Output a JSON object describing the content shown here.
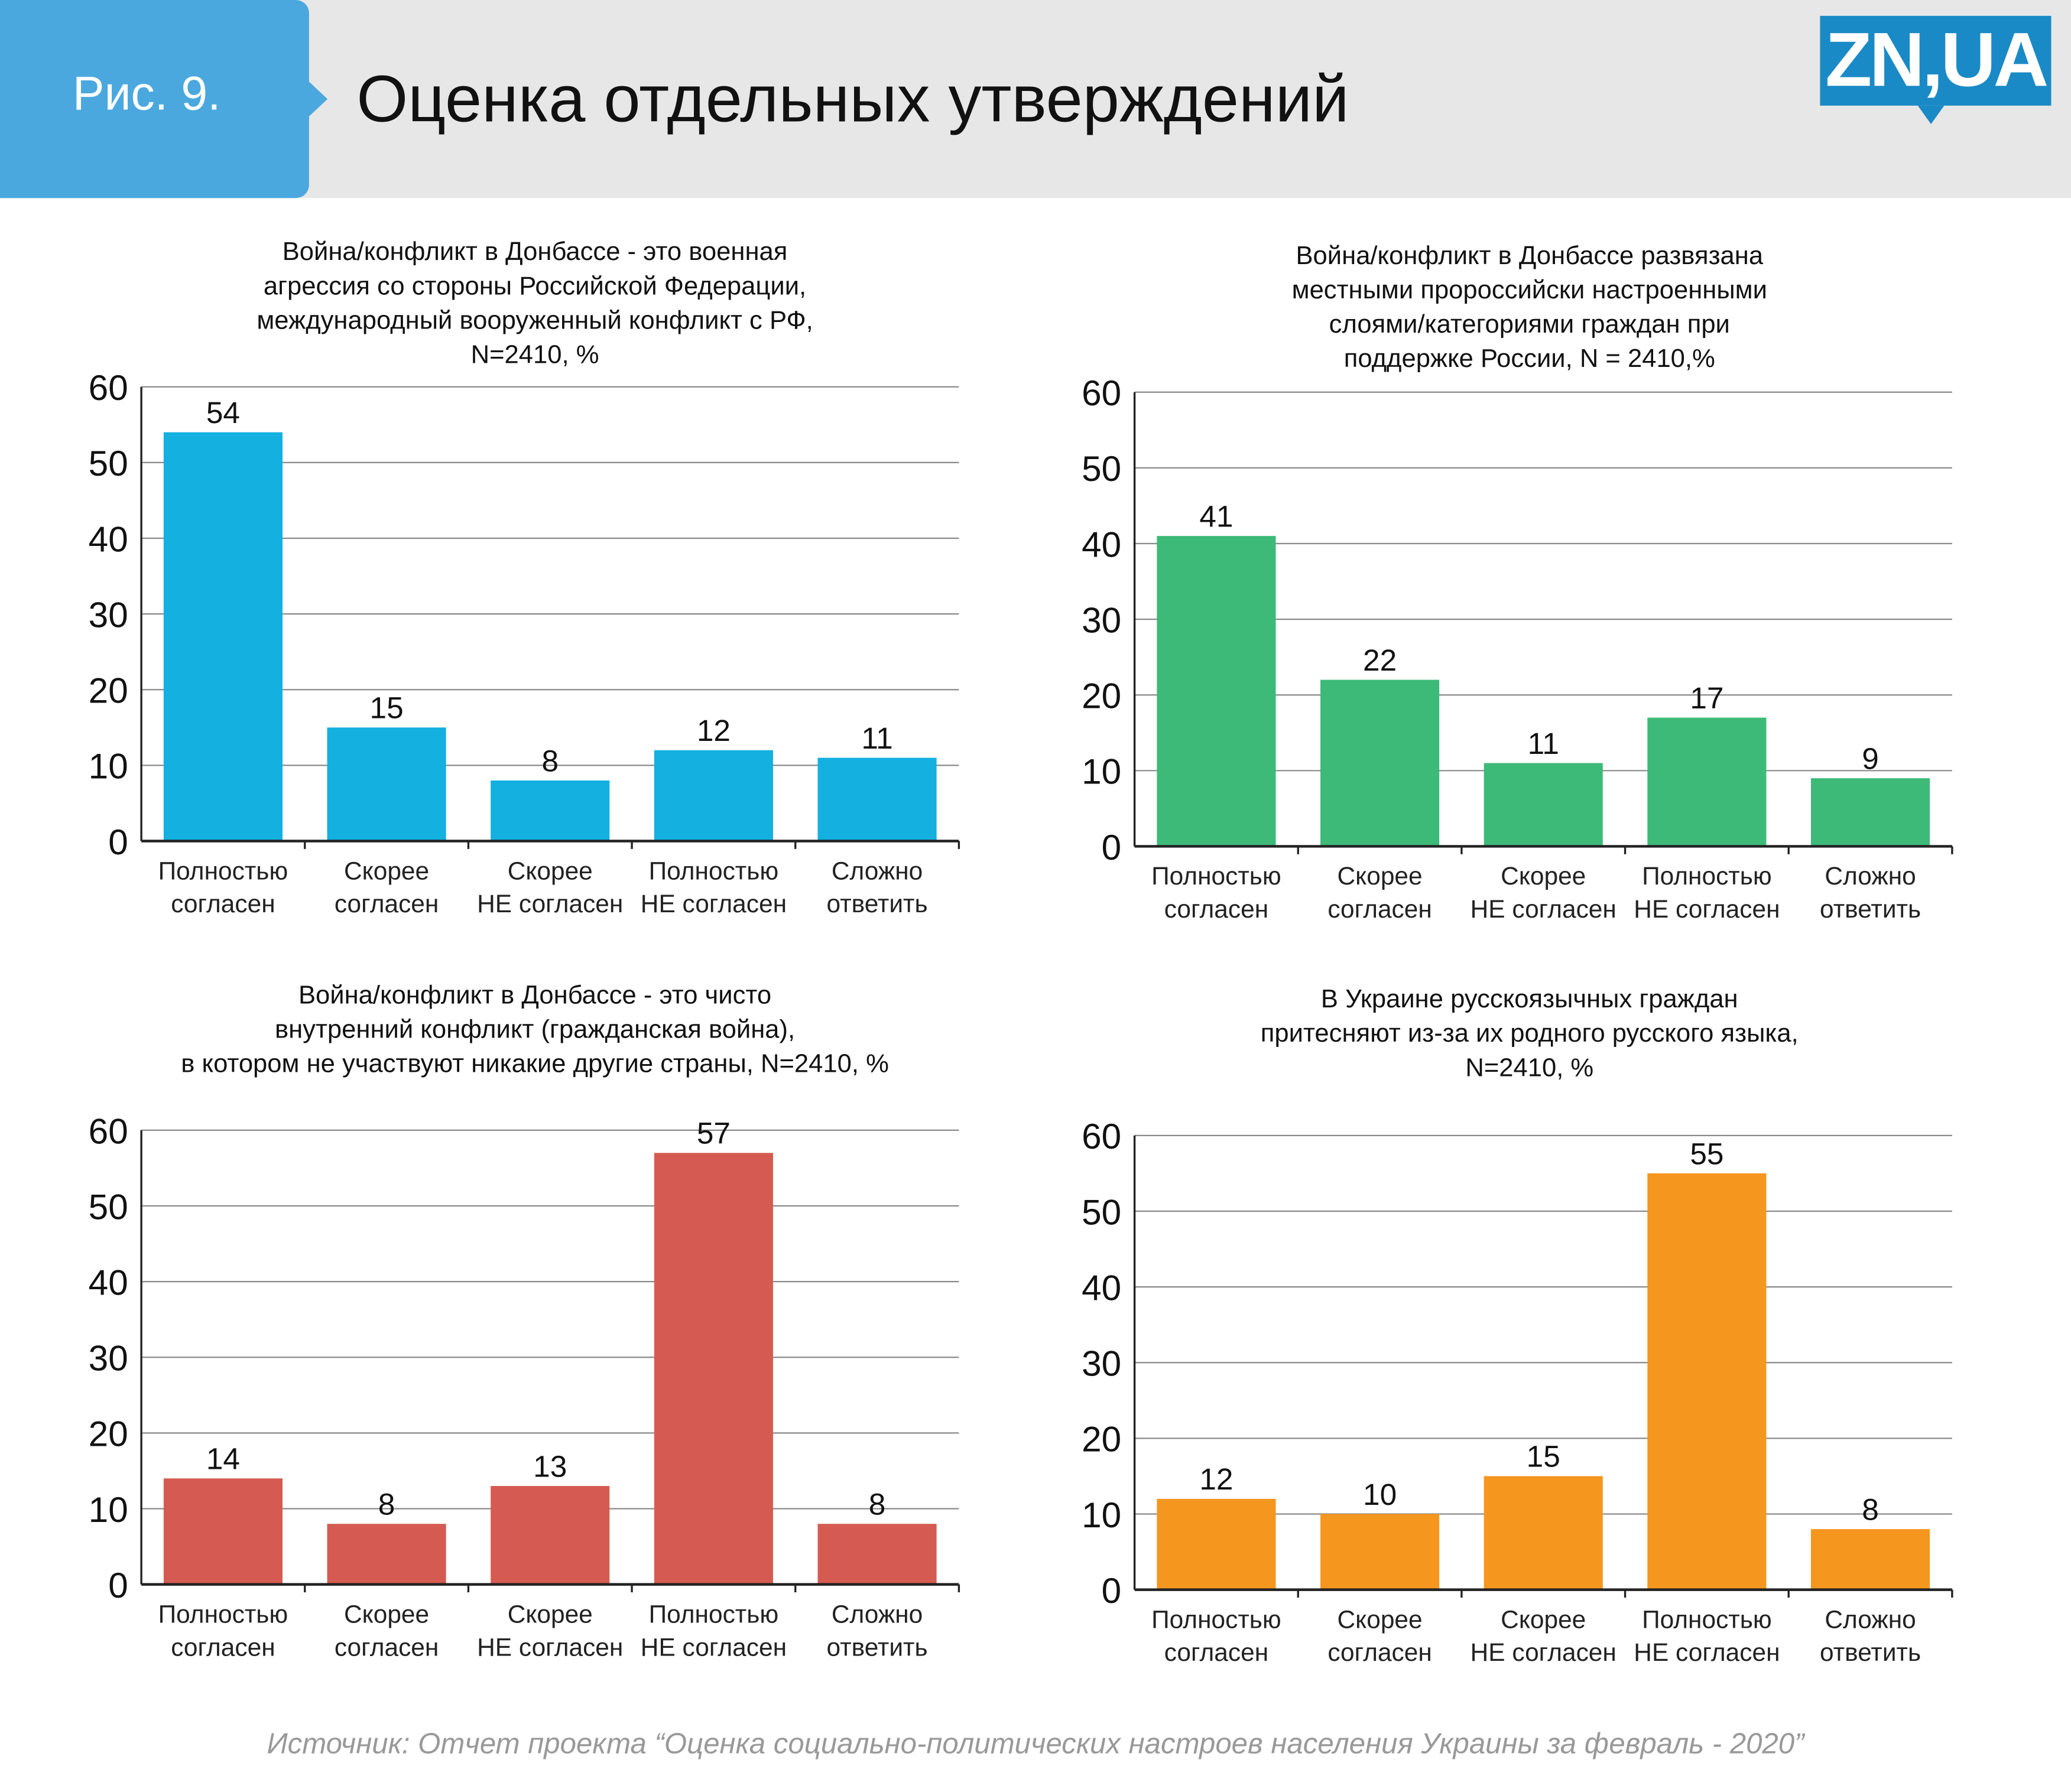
{
  "header": {
    "figure_label": "Рис. 9.",
    "title": "Оценка отдельных утверждений",
    "logo_text": "ZN,UA",
    "colors": {
      "header_bg": "#e7e7e7",
      "figure_box": "#4ba8df",
      "logo": "#1a8ac6"
    }
  },
  "chart_data": [
    {
      "type": "bar",
      "title_lines": [
        "Война/конфликт в Донбассе - это военная",
        "агрессия со стороны Российской Федерации,",
        "международный вооруженный конфликт с РФ,",
        "N=2410, %"
      ],
      "categories": [
        [
          "Полностью",
          "согласен"
        ],
        [
          "Скорее",
          "согласен"
        ],
        [
          "Скорее",
          "НЕ согласен"
        ],
        [
          "Полностью",
          "НЕ согласен"
        ],
        [
          "Сложно",
          "ответить"
        ]
      ],
      "values": [
        54,
        15,
        8,
        12,
        11
      ],
      "ylim": [
        0,
        60
      ],
      "yticks": [
        0,
        10,
        20,
        30,
        40,
        50,
        60
      ],
      "grid": true,
      "color": "#13b0e0"
    },
    {
      "type": "bar",
      "title_lines": [
        "Война/конфликт в Донбассе развязана",
        "местными пророссийски настроенными",
        "слоями/категориями граждан при",
        "поддержке России, N = 2410,%"
      ],
      "categories": [
        [
          "Полностью",
          "согласен"
        ],
        [
          "Скорее",
          "согласен"
        ],
        [
          "Скорее",
          "НЕ согласен"
        ],
        [
          "Полностью",
          "НЕ согласен"
        ],
        [
          "Сложно",
          "ответить"
        ]
      ],
      "values": [
        41,
        22,
        11,
        17,
        9
      ],
      "ylim": [
        0,
        60
      ],
      "yticks": [
        0,
        10,
        20,
        30,
        40,
        50,
        60
      ],
      "grid": true,
      "color": "#3dba78"
    },
    {
      "type": "bar",
      "title_lines": [
        "Война/конфликт в Донбассе - это чисто",
        "внутренний конфликт (гражданская война),",
        "в котором не участвуют никакие другие страны,  N=2410, %"
      ],
      "categories": [
        [
          "Полностью",
          "согласен"
        ],
        [
          "Скорее",
          "согласен"
        ],
        [
          "Скорее",
          "НЕ согласен"
        ],
        [
          "Полностью",
          "НЕ согласен"
        ],
        [
          "Сложно",
          "ответить"
        ]
      ],
      "values": [
        14,
        8,
        13,
        57,
        8
      ],
      "ylim": [
        0,
        60
      ],
      "yticks": [
        0,
        10,
        20,
        30,
        40,
        50,
        60
      ],
      "grid": true,
      "color": "#d55b52"
    },
    {
      "type": "bar",
      "title_lines": [
        "В Украине русскоязычных граждан",
        "притесняют из-за их родного русского языка,",
        "N=2410, %"
      ],
      "categories": [
        [
          "Полностью",
          "согласен"
        ],
        [
          "Скорее",
          "согласен"
        ],
        [
          "Скорее",
          "НЕ согласен"
        ],
        [
          "Полностью",
          "НЕ согласен"
        ],
        [
          "Сложно",
          "ответить"
        ]
      ],
      "values": [
        12,
        10,
        15,
        55,
        8
      ],
      "ylim": [
        0,
        60
      ],
      "yticks": [
        0,
        10,
        20,
        30,
        40,
        50,
        60
      ],
      "grid": true,
      "color": "#f5961f"
    }
  ],
  "footer": {
    "source": "Источник: Отчет проекта “Оценка социально-политических настроев населения Украины за февраль - 2020”"
  }
}
